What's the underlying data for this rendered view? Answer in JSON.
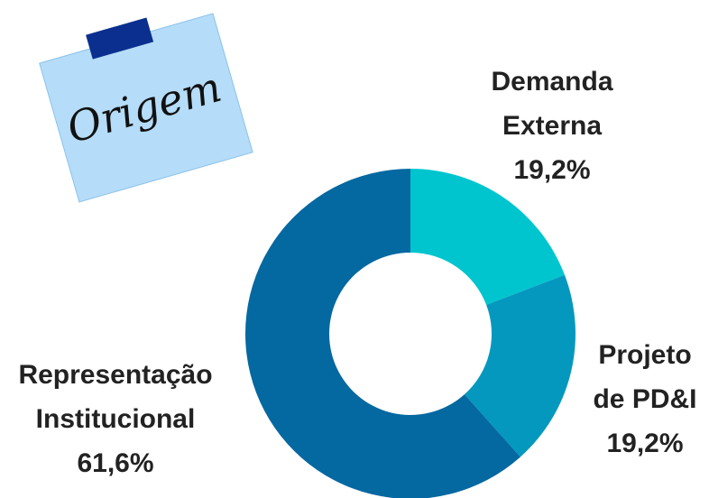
{
  "chart_data": {
    "type": "donut",
    "note": "Origem",
    "categories": [
      "Demanda Externa",
      "Projeto de PD&I",
      "Representação Institucional"
    ],
    "values": [
      19.2,
      19.2,
      61.6
    ],
    "value_labels": [
      "19,2%",
      "19,2%",
      "61,6%"
    ],
    "colors": [
      "#00c5cf",
      "#0598bf",
      "#0468a1"
    ]
  }
}
